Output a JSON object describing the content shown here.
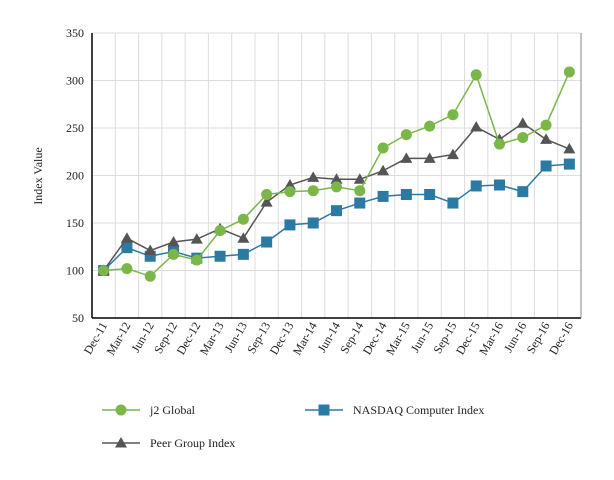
{
  "chart_data": {
    "type": "line",
    "title": "",
    "xlabel": "",
    "ylabel": "Index Value",
    "ylim": [
      50,
      350
    ],
    "yticks": [
      50,
      100,
      150,
      200,
      250,
      300,
      350
    ],
    "grid": true,
    "legend_position": "bottom",
    "categories": [
      "Dec-11",
      "Mar-12",
      "Jun-12",
      "Sep-12",
      "Dec-12",
      "Mar-13",
      "Jun-13",
      "Sep-13",
      "Dec-13",
      "Mar-14",
      "Jun-14",
      "Sep-14",
      "Dec-14",
      "Mar-15",
      "Jun-15",
      "Sep-15",
      "Dec-15",
      "Mar-16",
      "Jun-16",
      "Sep-16",
      "Dec-16"
    ],
    "series": [
      {
        "name": "j2 Global",
        "color": "#7ab648",
        "marker": "circle",
        "values": [
          100,
          102,
          94,
          117,
          111,
          142,
          154,
          180,
          183,
          184,
          188,
          184,
          229,
          243,
          252,
          264,
          306,
          233,
          240,
          253,
          309
        ]
      },
      {
        "name": "NASDAQ Computer Index",
        "color": "#2a7aa3",
        "marker": "square",
        "values": [
          100,
          124,
          115,
          120,
          113,
          115,
          117,
          130,
          148,
          150,
          163,
          171,
          178,
          180,
          180,
          171,
          189,
          190,
          183,
          210,
          212
        ]
      },
      {
        "name": "Peer Group Index",
        "color": "#555555",
        "marker": "triangle",
        "values": [
          100,
          134,
          121,
          130,
          133,
          144,
          134,
          172,
          190,
          198,
          196,
          196,
          205,
          218,
          218,
          222,
          251,
          238,
          255,
          238,
          228
        ]
      }
    ]
  }
}
